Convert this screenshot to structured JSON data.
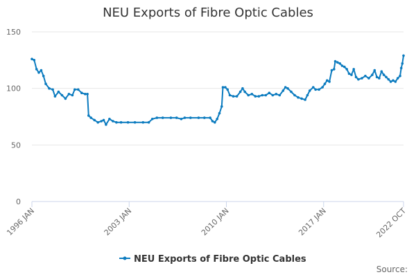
{
  "chart_data": {
    "type": "line",
    "title": "NEU Exports of Fibre Optic Cables",
    "xlabel": "",
    "ylabel": "",
    "ylim": [
      0,
      150
    ],
    "yticks": [
      0,
      50,
      100,
      150
    ],
    "xlim": [
      "1996-01",
      "2022-10"
    ],
    "xticks": [
      {
        "x": "1996-01",
        "label": "1996 JAN"
      },
      {
        "x": "2003-01",
        "label": "2003 JAN"
      },
      {
        "x": "2010-01",
        "label": "2010 JAN"
      },
      {
        "x": "2017-01",
        "label": "2017 JAN"
      },
      {
        "x": "2022-10",
        "label": "2022 OCT"
      }
    ],
    "grid": true,
    "legend_position": "bottom",
    "source_label": "Source:",
    "series": [
      {
        "name": "NEU Exports of Fibre Optic Cables",
        "color": "#0b7bbf",
        "points": [
          [
            "1996-01",
            126
          ],
          [
            "1996-03",
            125
          ],
          [
            "1996-05",
            117
          ],
          [
            "1996-07",
            114
          ],
          [
            "1996-09",
            116
          ],
          [
            "1996-11",
            111
          ],
          [
            "1997-01",
            104
          ],
          [
            "1997-04",
            100
          ],
          [
            "1997-07",
            99
          ],
          [
            "1997-09",
            93
          ],
          [
            "1997-12",
            97
          ],
          [
            "1998-03",
            94
          ],
          [
            "1998-06",
            91
          ],
          [
            "1998-09",
            95
          ],
          [
            "1998-12",
            94
          ],
          [
            "1999-02",
            99
          ],
          [
            "1999-05",
            99
          ],
          [
            "1999-08",
            96
          ],
          [
            "1999-11",
            95
          ],
          [
            "2000-01",
            95
          ],
          [
            "2000-02",
            76
          ],
          [
            "2000-04",
            74
          ],
          [
            "2000-07",
            72
          ],
          [
            "2000-10",
            70
          ],
          [
            "2001-01",
            71
          ],
          [
            "2001-03",
            72
          ],
          [
            "2001-05",
            68
          ],
          [
            "2001-08",
            73
          ],
          [
            "2001-11",
            71
          ],
          [
            "2002-02",
            70
          ],
          [
            "2002-06",
            70
          ],
          [
            "2002-12",
            70
          ],
          [
            "2003-06",
            70
          ],
          [
            "2004-01",
            70
          ],
          [
            "2004-06",
            70
          ],
          [
            "2004-09",
            73
          ],
          [
            "2005-01",
            74
          ],
          [
            "2005-06",
            74
          ],
          [
            "2006-01",
            74
          ],
          [
            "2006-06",
            74
          ],
          [
            "2006-10",
            73
          ],
          [
            "2007-01",
            74
          ],
          [
            "2007-06",
            74
          ],
          [
            "2008-01",
            74
          ],
          [
            "2008-06",
            74
          ],
          [
            "2008-11",
            74
          ],
          [
            "2009-01",
            71
          ],
          [
            "2009-03",
            70
          ],
          [
            "2009-05",
            73
          ],
          [
            "2009-07",
            78
          ],
          [
            "2009-09",
            84
          ],
          [
            "2009-10",
            101
          ],
          [
            "2009-12",
            101
          ],
          [
            "2010-02",
            99
          ],
          [
            "2010-04",
            94
          ],
          [
            "2010-07",
            93
          ],
          [
            "2010-10",
            93
          ],
          [
            "2011-01",
            97
          ],
          [
            "2011-03",
            100
          ],
          [
            "2011-05",
            97
          ],
          [
            "2011-08",
            94
          ],
          [
            "2011-11",
            95
          ],
          [
            "2012-02",
            93
          ],
          [
            "2012-05",
            93
          ],
          [
            "2012-08",
            94
          ],
          [
            "2012-11",
            94
          ],
          [
            "2013-02",
            96
          ],
          [
            "2013-05",
            94
          ],
          [
            "2013-08",
            95
          ],
          [
            "2013-11",
            94
          ],
          [
            "2014-02",
            98
          ],
          [
            "2014-04",
            101
          ],
          [
            "2014-06",
            100
          ],
          [
            "2014-09",
            97
          ],
          [
            "2014-12",
            94
          ],
          [
            "2015-03",
            92
          ],
          [
            "2015-06",
            91
          ],
          [
            "2015-09",
            90
          ],
          [
            "2015-11",
            94
          ],
          [
            "2016-01",
            98
          ],
          [
            "2016-04",
            101
          ],
          [
            "2016-06",
            99
          ],
          [
            "2016-09",
            99
          ],
          [
            "2016-12",
            101
          ],
          [
            "2017-02",
            104
          ],
          [
            "2017-04",
            107
          ],
          [
            "2017-06",
            106
          ],
          [
            "2017-08",
            116
          ],
          [
            "2017-10",
            117
          ],
          [
            "2017-11",
            124
          ],
          [
            "2018-01",
            123
          ],
          [
            "2018-03",
            122
          ],
          [
            "2018-05",
            120
          ],
          [
            "2018-07",
            119
          ],
          [
            "2018-09",
            117
          ],
          [
            "2018-11",
            113
          ],
          [
            "2019-01",
            112
          ],
          [
            "2019-03",
            117
          ],
          [
            "2019-05",
            110
          ],
          [
            "2019-07",
            108
          ],
          [
            "2019-10",
            109
          ],
          [
            "2020-01",
            111
          ],
          [
            "2020-04",
            109
          ],
          [
            "2020-07",
            112
          ],
          [
            "2020-09",
            116
          ],
          [
            "2020-11",
            110
          ],
          [
            "2021-01",
            109
          ],
          [
            "2021-03",
            115
          ],
          [
            "2021-05",
            112
          ],
          [
            "2021-07",
            110
          ],
          [
            "2021-09",
            108
          ],
          [
            "2021-11",
            106
          ],
          [
            "2022-01",
            107
          ],
          [
            "2022-03",
            106
          ],
          [
            "2022-05",
            109
          ],
          [
            "2022-07",
            111
          ],
          [
            "2022-08",
            118
          ],
          [
            "2022-09",
            122
          ],
          [
            "2022-10",
            129
          ]
        ]
      }
    ]
  }
}
